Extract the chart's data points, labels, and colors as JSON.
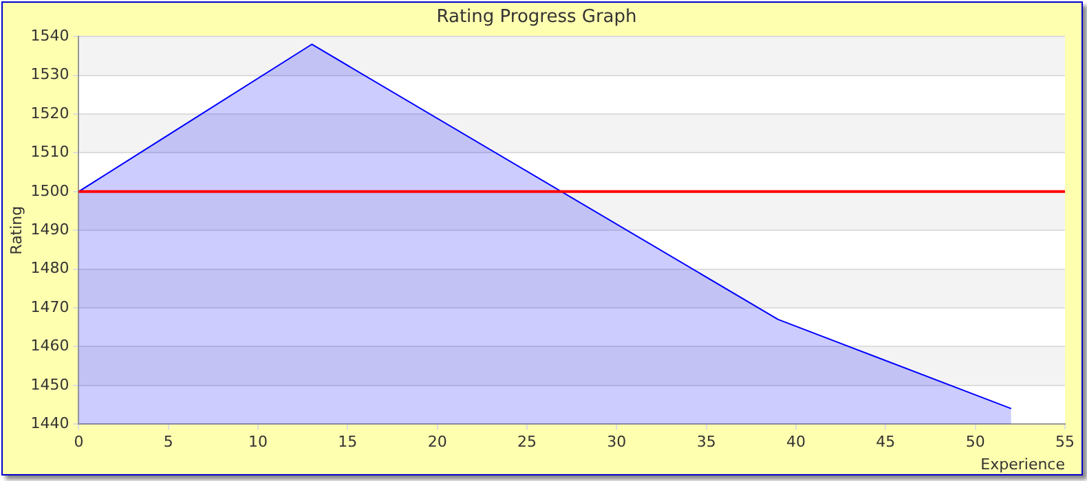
{
  "chart_data": {
    "type": "area",
    "title": "Rating Progress Graph",
    "xlabel": "Experience",
    "ylabel": "Rating",
    "x": [
      0,
      13,
      39,
      52
    ],
    "series": [
      {
        "color": "#0000ff",
        "values": [
          1500,
          1538,
          1467,
          1444
        ]
      }
    ],
    "xlim": [
      0,
      55
    ],
    "xticks": [
      0,
      5,
      10,
      15,
      20,
      25,
      30,
      35,
      40,
      45,
      50,
      55
    ],
    "ylim": [
      1440,
      1540
    ],
    "yticks": [
      1440,
      1450,
      1460,
      1470,
      1480,
      1490,
      1500,
      1510,
      1520,
      1530,
      1540
    ],
    "grid": "y",
    "legend": false,
    "marker": "none",
    "ref_lines": [
      {
        "axis": "y",
        "value": 1500,
        "color": "#ff0000"
      }
    ]
  }
}
